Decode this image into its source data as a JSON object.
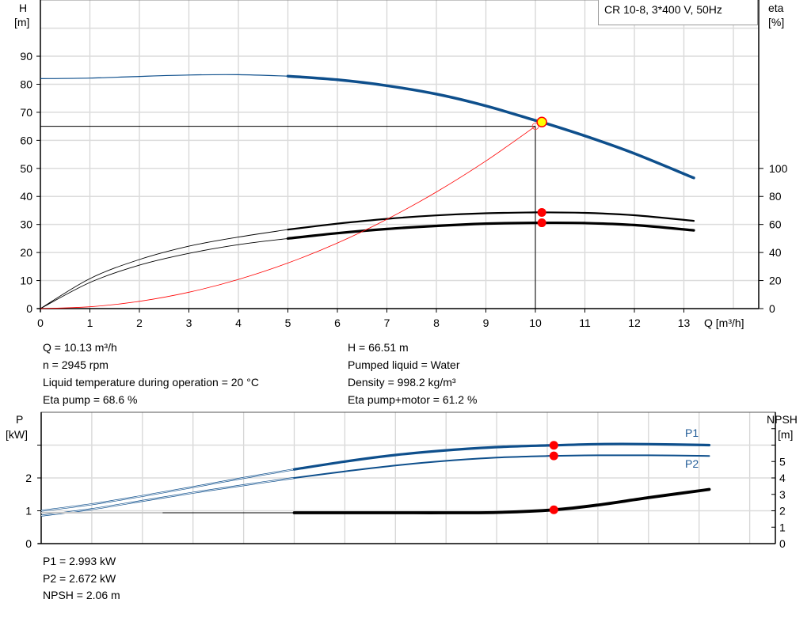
{
  "chart_data": [
    {
      "type": "line",
      "title": "CR 10-8, 3*400 V, 50Hz",
      "xlabel": "Q [m³/h]",
      "ylabel_left": [
        "H",
        "[m]"
      ],
      "ylabel_right": [
        "eta",
        "[%]"
      ],
      "xlim": [
        0,
        14.5
      ],
      "ylim_left": [
        0,
        110
      ],
      "ylim_right": [
        0,
        220
      ],
      "x_ticks": [
        0,
        1,
        2,
        3,
        4,
        5,
        6,
        7,
        8,
        9,
        10,
        11,
        12,
        13
      ],
      "y_ticks_left": [
        0,
        10,
        20,
        30,
        40,
        50,
        60,
        70,
        80,
        90
      ],
      "y_ticks_right": [
        0,
        20,
        40,
        60,
        80,
        100
      ],
      "grid": true,
      "operating_range_start_q": 5,
      "series": [
        {
          "id": "head",
          "axis": "left",
          "color": "#0e4f8c",
          "x": [
            0,
            1,
            2,
            3,
            4,
            5,
            6,
            7,
            8,
            9,
            10,
            10.13,
            11,
            12,
            13.2
          ],
          "y": [
            82,
            82.2,
            82.8,
            83.3,
            83.4,
            82.9,
            81.6,
            79.5,
            76.5,
            72.3,
            67.1,
            66.51,
            61.6,
            55.3,
            46.6
          ]
        },
        {
          "id": "eta-pump",
          "axis": "right",
          "color": "#000000",
          "x": [
            0,
            1,
            2,
            3,
            4,
            5,
            6,
            7,
            8,
            9,
            10,
            10.13,
            11,
            12,
            13.2
          ],
          "y": [
            0,
            21.4,
            35,
            44.5,
            51,
            56.4,
            60.6,
            64,
            66.5,
            68,
            68.6,
            68.6,
            68.3,
            66.6,
            62.6
          ]
        },
        {
          "id": "eta-pump-motor",
          "axis": "right",
          "color": "#000000",
          "x": [
            0,
            1,
            2,
            3,
            4,
            5,
            6,
            7,
            8,
            9,
            10,
            10.13,
            11,
            12,
            13.2
          ],
          "y": [
            0,
            18.6,
            31,
            39.4,
            45.6,
            50,
            53.8,
            56.8,
            59,
            60.6,
            61.2,
            61.2,
            61,
            59.6,
            55.8
          ]
        },
        {
          "id": "system-curve",
          "axis": "left",
          "color": "#ff0000",
          "x": [
            0,
            1,
            2,
            3,
            4,
            5,
            6,
            7,
            8,
            9,
            10
          ],
          "y": [
            0,
            0.65,
            2.6,
            5.85,
            10.4,
            16.25,
            23.4,
            31.85,
            41.6,
            52.65,
            65
          ]
        }
      ],
      "duty_point": {
        "q": 10.13,
        "h": 66.51,
        "eta_pump": 68.6,
        "eta_pump_motor": 61.2,
        "required_q": 10,
        "required_h": 65
      }
    },
    {
      "type": "line",
      "ylabel_left": [
        "P",
        "[kW]"
      ],
      "ylabel_right": [
        "NPSH",
        "[m]"
      ],
      "xlim": [
        0,
        14.5
      ],
      "ylim_left": [
        0,
        4
      ],
      "ylim_right": [
        0,
        8
      ],
      "y_ticks_left": [
        0,
        1,
        2
      ],
      "y_ticks_right": [
        0,
        1,
        2,
        3,
        4,
        5
      ],
      "grid": true,
      "series": [
        {
          "id": "p1",
          "name": "P1",
          "axis": "left",
          "color": "#0e4f8c",
          "x": [
            0,
            1,
            2,
            3,
            4,
            5,
            6,
            7,
            8,
            9,
            10,
            10.13,
            11,
            12,
            13.2
          ],
          "y": [
            1.0,
            1.2,
            1.45,
            1.72,
            2.0,
            2.26,
            2.5,
            2.7,
            2.84,
            2.94,
            2.99,
            2.993,
            3.03,
            3.03,
            3.0
          ]
        },
        {
          "id": "p2",
          "name": "P2",
          "axis": "left",
          "color": "#0e4f8c",
          "x": [
            0,
            1,
            2,
            3,
            4,
            5,
            6,
            7,
            8,
            9,
            10,
            10.13,
            11,
            12,
            13.2
          ],
          "y": [
            0.85,
            1.05,
            1.3,
            1.55,
            1.78,
            2.0,
            2.2,
            2.38,
            2.52,
            2.62,
            2.67,
            2.672,
            2.69,
            2.69,
            2.67
          ]
        },
        {
          "id": "npsh",
          "axis": "right",
          "color": "#000000",
          "x": [
            0,
            2,
            4,
            5,
            6,
            7,
            8,
            9,
            10.13,
            11,
            12,
            13.2
          ],
          "y": [
            1.88,
            1.88,
            1.88,
            1.88,
            1.88,
            1.88,
            1.88,
            1.9,
            2.06,
            2.35,
            2.8,
            3.3
          ]
        }
      ],
      "duty_point": {
        "q": 10.13,
        "p1": 2.993,
        "p2": 2.672,
        "npsh": 2.06
      }
    }
  ],
  "info": {
    "left": [
      "Q = 10.13 m³/h",
      "n = 2945 rpm",
      "Liquid temperature during operation = 20 °C",
      "Eta pump = 68.6 %"
    ],
    "right": [
      "H = 66.51 m",
      "Pumped liquid = Water",
      "Density = 998.2 kg/m³",
      "Eta pump+motor = 61.2 %"
    ],
    "bottom": [
      "P1 = 2.993 kW",
      "P2 = 2.672 kW",
      "NPSH = 2.06 m"
    ]
  }
}
